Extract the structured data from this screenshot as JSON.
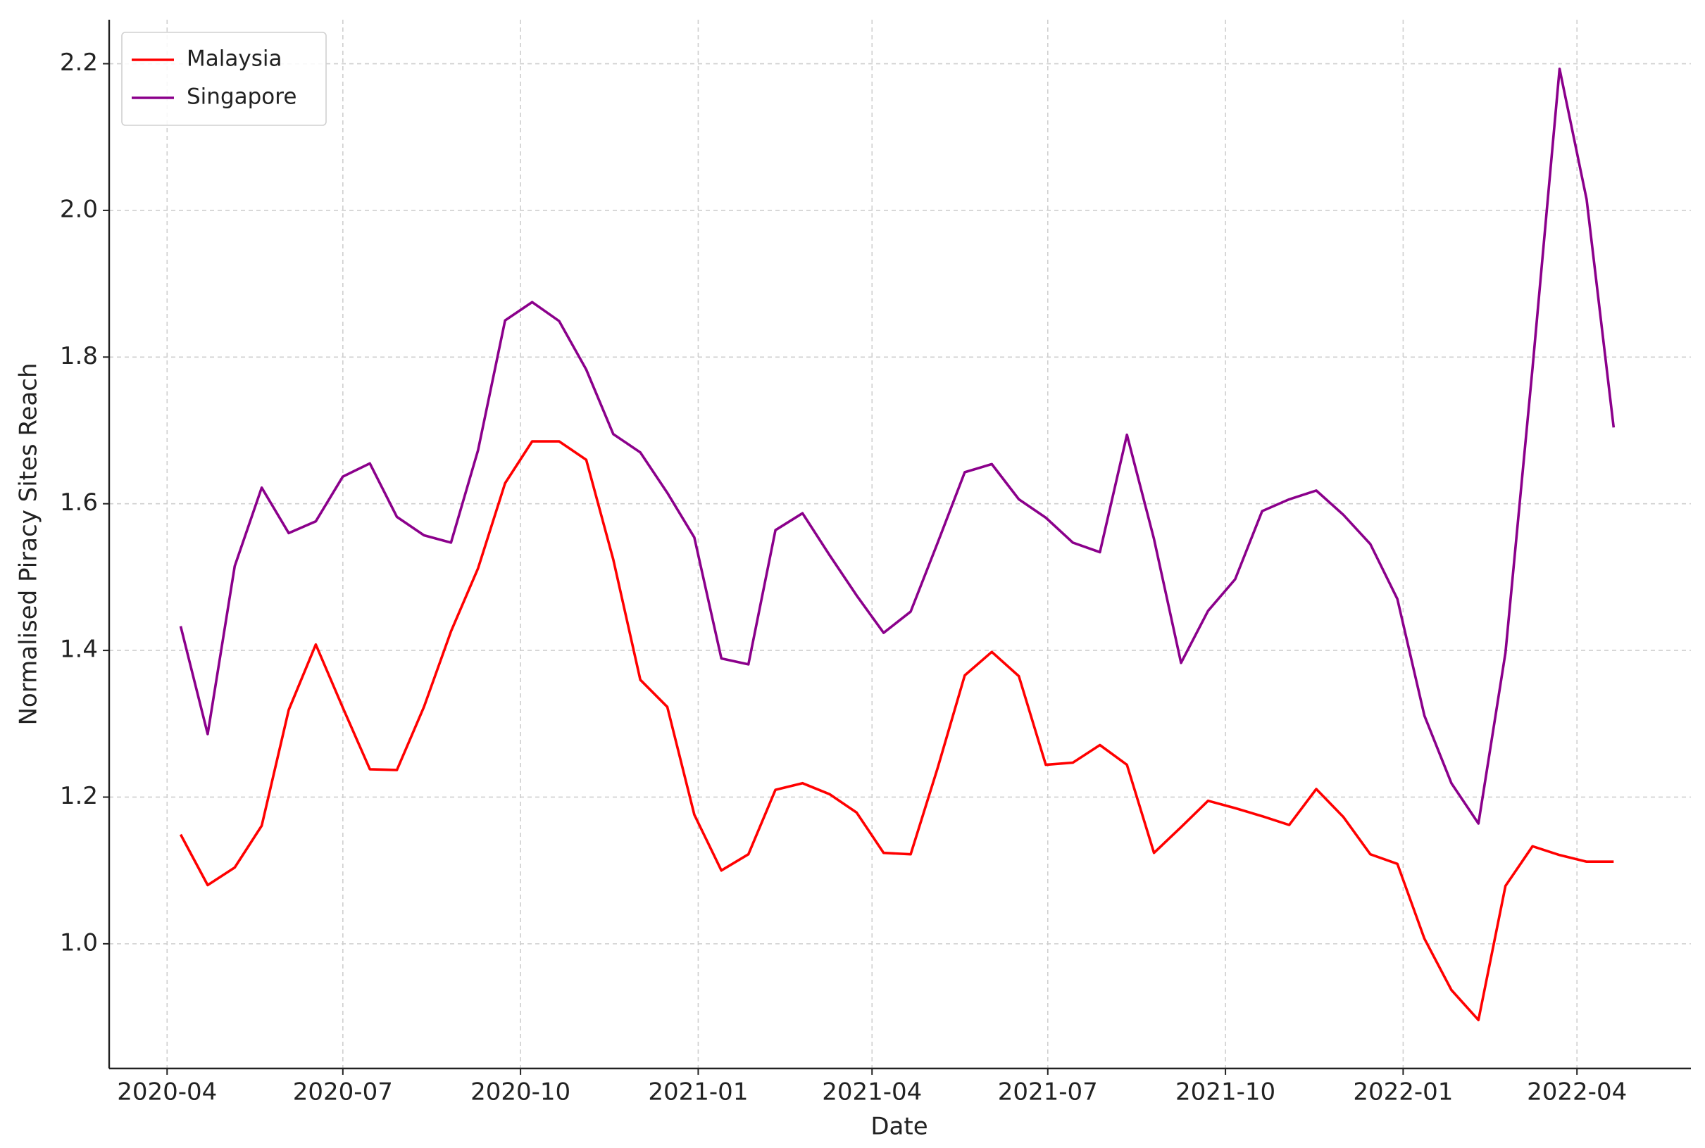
{
  "chart_data": {
    "type": "line",
    "x_label": "Date",
    "y_label": "Normalised Piracy Sites Reach",
    "x": [
      "2020-04-08",
      "2020-04-22",
      "2020-05-06",
      "2020-05-20",
      "2020-06-03",
      "2020-06-17",
      "2020-07-01",
      "2020-07-15",
      "2020-07-29",
      "2020-08-12",
      "2020-08-26",
      "2020-09-09",
      "2020-09-23",
      "2020-10-07",
      "2020-10-21",
      "2020-11-04",
      "2020-11-18",
      "2020-12-02",
      "2020-12-16",
      "2020-12-30",
      "2021-01-13",
      "2021-01-27",
      "2021-02-10",
      "2021-02-24",
      "2021-03-10",
      "2021-03-24",
      "2021-04-07",
      "2021-04-21",
      "2021-05-05",
      "2021-05-19",
      "2021-06-02",
      "2021-06-16",
      "2021-06-30",
      "2021-07-14",
      "2021-07-28",
      "2021-08-11",
      "2021-08-25",
      "2021-09-08",
      "2021-09-22",
      "2021-10-06",
      "2021-10-20",
      "2021-11-03",
      "2021-11-17",
      "2021-12-01",
      "2021-12-15",
      "2021-12-29",
      "2022-01-12",
      "2022-01-26",
      "2022-02-09",
      "2022-02-23",
      "2022-03-09",
      "2022-03-23",
      "2022-04-06",
      "2022-04-20"
    ],
    "series": [
      {
        "name": "Malaysia",
        "color": "#ff0000",
        "values": [
          1.149,
          1.08,
          1.104,
          1.161,
          1.319,
          1.408,
          1.322,
          1.238,
          1.237,
          1.323,
          1.426,
          1.512,
          1.628,
          1.685,
          1.685,
          1.66,
          1.524,
          1.36,
          1.323,
          1.176,
          1.1,
          1.122,
          1.21,
          1.219,
          1.204,
          1.179,
          1.124,
          1.122,
          1.24,
          1.366,
          1.398,
          1.365,
          1.244,
          1.247,
          1.271,
          1.244,
          1.124,
          1.159,
          1.195,
          1.185,
          1.174,
          1.162,
          1.211,
          1.173,
          1.122,
          1.109,
          1.007,
          0.937,
          0.896,
          1.079,
          1.133,
          1.121,
          1.112,
          1.112
        ]
      },
      {
        "name": "Singapore",
        "color": "#8b008b",
        "values": [
          1.433,
          1.286,
          1.515,
          1.622,
          1.56,
          1.576,
          1.637,
          1.655,
          1.582,
          1.557,
          1.547,
          1.673,
          1.85,
          1.875,
          1.849,
          1.783,
          1.695,
          1.67,
          1.615,
          1.554,
          1.389,
          1.381,
          1.564,
          1.587,
          1.53,
          1.475,
          1.424,
          1.453,
          1.547,
          1.643,
          1.654,
          1.606,
          1.581,
          1.547,
          1.534,
          1.694,
          1.552,
          1.383,
          1.454,
          1.497,
          1.59,
          1.606,
          1.618,
          1.585,
          1.545,
          1.47,
          1.311,
          1.219,
          1.164,
          1.397,
          1.785,
          2.193,
          2.015,
          1.704
        ]
      }
    ],
    "xlim": [
      "2020-03-02",
      "2022-05-30"
    ],
    "xticks": [
      {
        "value": "2020-04-01",
        "label": "2020-04"
      },
      {
        "value": "2020-07-01",
        "label": "2020-07"
      },
      {
        "value": "2020-10-01",
        "label": "2020-10"
      },
      {
        "value": "2021-01-01",
        "label": "2021-01"
      },
      {
        "value": "2021-04-01",
        "label": "2021-04"
      },
      {
        "value": "2021-07-01",
        "label": "2021-07"
      },
      {
        "value": "2021-10-01",
        "label": "2021-10"
      },
      {
        "value": "2022-01-01",
        "label": "2022-01"
      },
      {
        "value": "2022-04-01",
        "label": "2022-04"
      }
    ],
    "ylim": [
      0.83,
      2.26
    ],
    "yticks": [
      {
        "value": 1,
        "label": "1.0"
      },
      1.2,
      1.4,
      1.6,
      1.8,
      {
        "value": 2,
        "label": "2.0"
      },
      2.2
    ],
    "grid": true,
    "legend": "upper left"
  }
}
